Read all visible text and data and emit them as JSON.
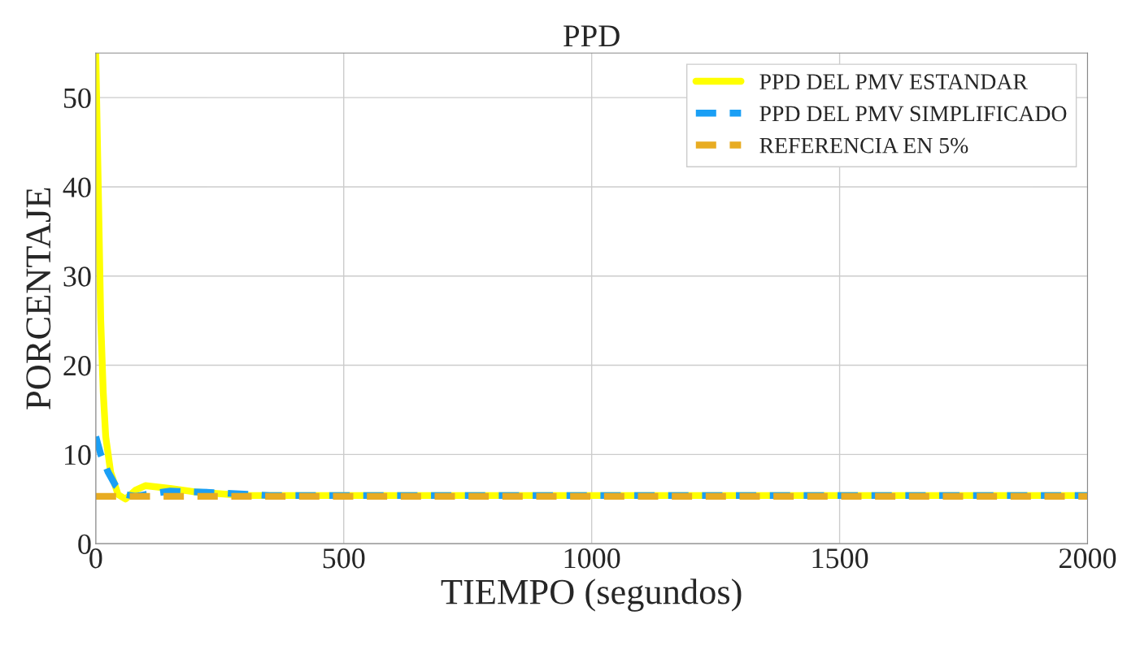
{
  "chart_data": {
    "type": "line",
    "title": "PPD",
    "xlabel": "TIEMPO (segundos)",
    "ylabel": "PORCENTAJE",
    "xlim": [
      0,
      2000
    ],
    "ylim": [
      0,
      55
    ],
    "xticks": [
      0,
      500,
      1000,
      1500,
      2000
    ],
    "yticks": [
      0,
      10,
      20,
      30,
      40,
      50
    ],
    "grid": true,
    "legend": "top right",
    "series": [
      {
        "name": "PPD DEL PMV ESTANDAR",
        "color": "#ffff00",
        "line_style": "solid",
        "x": [
          0,
          5,
          10,
          15,
          20,
          30,
          45,
          60,
          80,
          100,
          150,
          200,
          300,
          2000
        ],
        "values": [
          55,
          40,
          25,
          17,
          12,
          8,
          5.5,
          5,
          6,
          6.5,
          6.2,
          5.8,
          5.4,
          5.4
        ]
      },
      {
        "name": "PPD DEL PMV SIMPLIFICADO",
        "color": "#1a9ff5",
        "line_style": "dashed",
        "x": [
          0,
          10,
          25,
          40,
          60,
          80,
          100,
          150,
          250,
          350,
          2000
        ],
        "values": [
          12,
          10,
          8,
          6.5,
          5.5,
          5.3,
          5.5,
          5.9,
          5.7,
          5.4,
          5.4
        ]
      },
      {
        "name": "REFERENCIA EN 5%",
        "color": "#e8ac22",
        "line_style": "dashed",
        "x": [
          0,
          2000
        ],
        "values": [
          5.3,
          5.3
        ]
      }
    ]
  }
}
